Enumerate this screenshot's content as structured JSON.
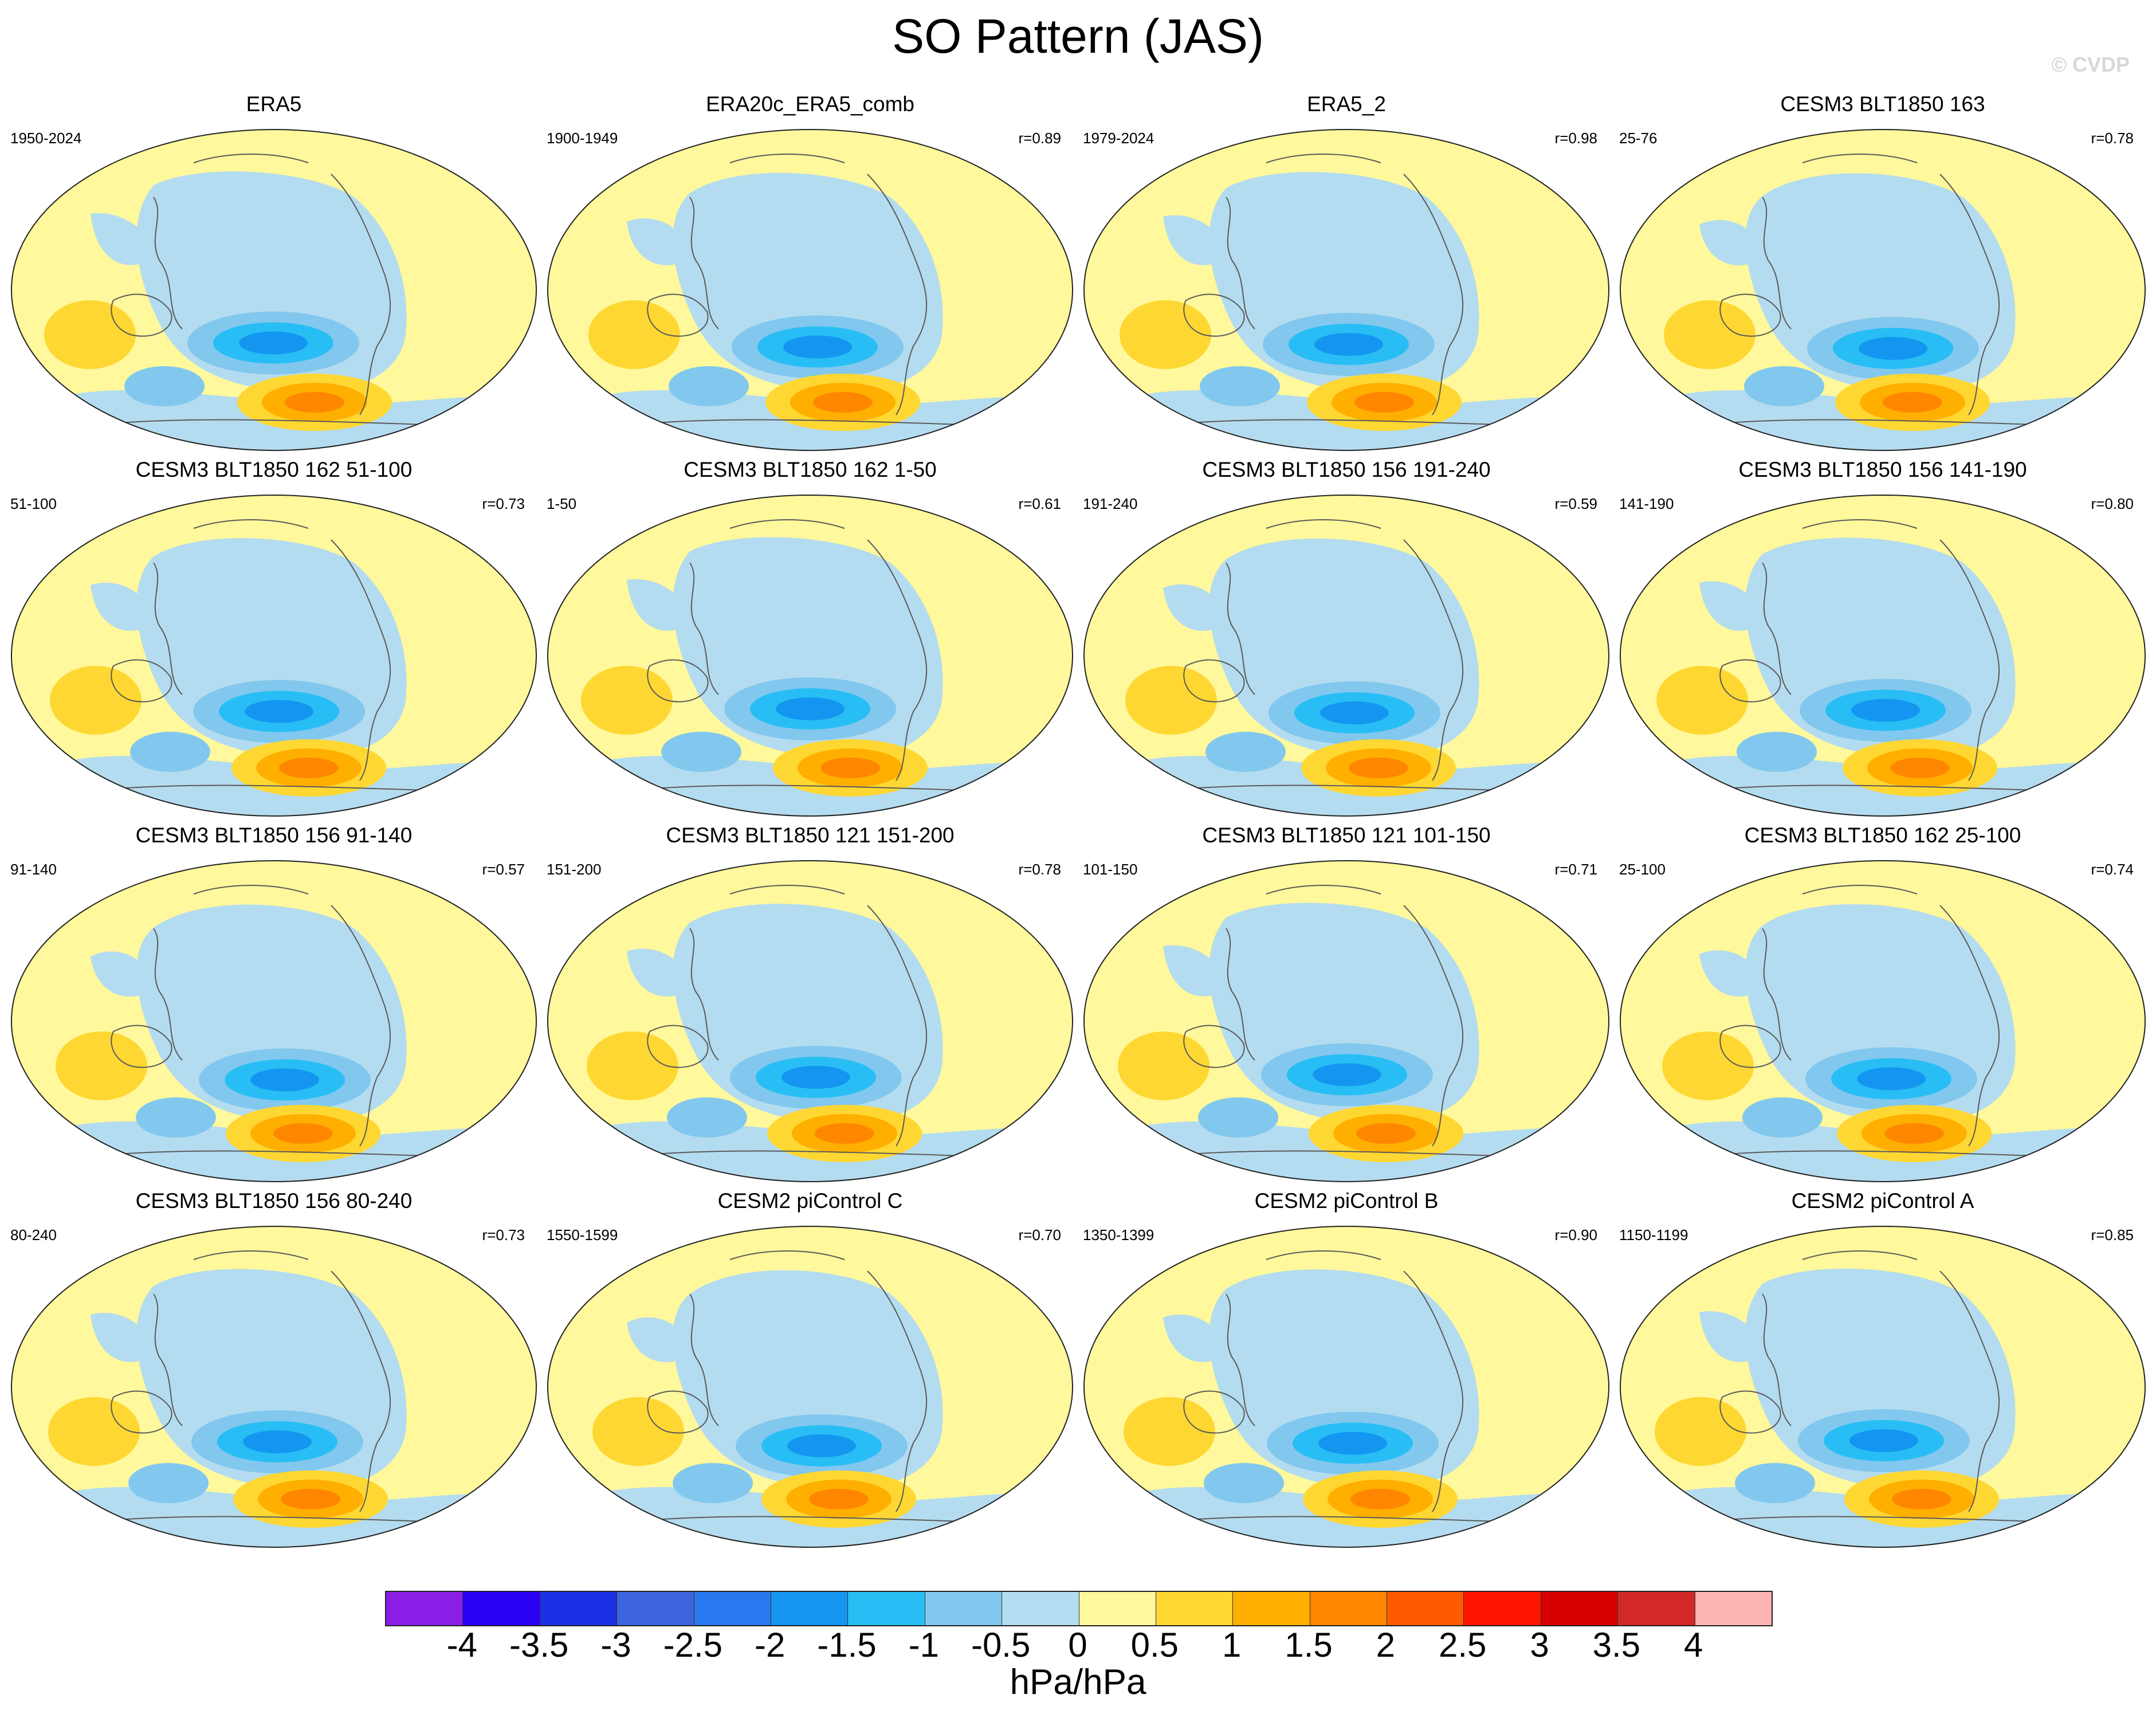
{
  "title": "SO Pattern (JAS)",
  "watermark": "© CVDP",
  "panels": [
    {
      "title": "ERA5",
      "years": "1950-2024",
      "r": ""
    },
    {
      "title": "ERA20c_ERA5_comb",
      "years": "1900-1949",
      "r": "r=0.89"
    },
    {
      "title": "ERA5_2",
      "years": "1979-2024",
      "r": "r=0.98"
    },
    {
      "title": "CESM3 BLT1850 163",
      "years": "25-76",
      "r": "r=0.78"
    },
    {
      "title": "CESM3 BLT1850 162 51-100",
      "years": "51-100",
      "r": "r=0.73"
    },
    {
      "title": "CESM3 BLT1850 162 1-50",
      "years": "1-50",
      "r": "r=0.61"
    },
    {
      "title": "CESM3 BLT1850 156 191-240",
      "years": "191-240",
      "r": "r=0.59"
    },
    {
      "title": "CESM3 BLT1850 156 141-190",
      "years": "141-190",
      "r": "r=0.80"
    },
    {
      "title": "CESM3 BLT1850 156 91-140",
      "years": "91-140",
      "r": "r=0.57"
    },
    {
      "title": "CESM3 BLT1850 121 151-200",
      "years": "151-200",
      "r": "r=0.78"
    },
    {
      "title": "CESM3 BLT1850 121 101-150",
      "years": "101-150",
      "r": "r=0.71"
    },
    {
      "title": "CESM3 BLT1850 162 25-100",
      "years": "25-100",
      "r": "r=0.74"
    },
    {
      "title": "CESM3 BLT1850 156 80-240",
      "years": "80-240",
      "r": "r=0.73"
    },
    {
      "title": "CESM2 piControl C",
      "years": "1550-1599",
      "r": "r=0.70"
    },
    {
      "title": "CESM2 piControl B",
      "years": "1350-1399",
      "r": "r=0.90"
    },
    {
      "title": "CESM2 piControl A",
      "years": "1150-1199",
      "r": "r=0.85"
    }
  ],
  "colorbar": {
    "colors": [
      "#8a1ee6",
      "#2a00f5",
      "#1c30e6",
      "#3c64dc",
      "#2878f0",
      "#1496f0",
      "#28bef5",
      "#82c8ee",
      "#b4dcf0",
      "#fff89c",
      "#ffd732",
      "#ffaf00",
      "#ff8700",
      "#ff5a00",
      "#ff1400",
      "#d70000",
      "#d22828",
      "#ffb4b4"
    ],
    "labels": [
      "-4",
      "-3.5",
      "-3",
      "-2.5",
      "-2",
      "-1.5",
      "-1",
      "-0.5",
      "0",
      "0.5",
      "1",
      "1.5",
      "2",
      "2.5",
      "3",
      "3.5",
      "4"
    ],
    "units": "hPa/hPa"
  },
  "palette": {
    "land_line": "#5a5a5a",
    "neutral": "#fff89c"
  }
}
